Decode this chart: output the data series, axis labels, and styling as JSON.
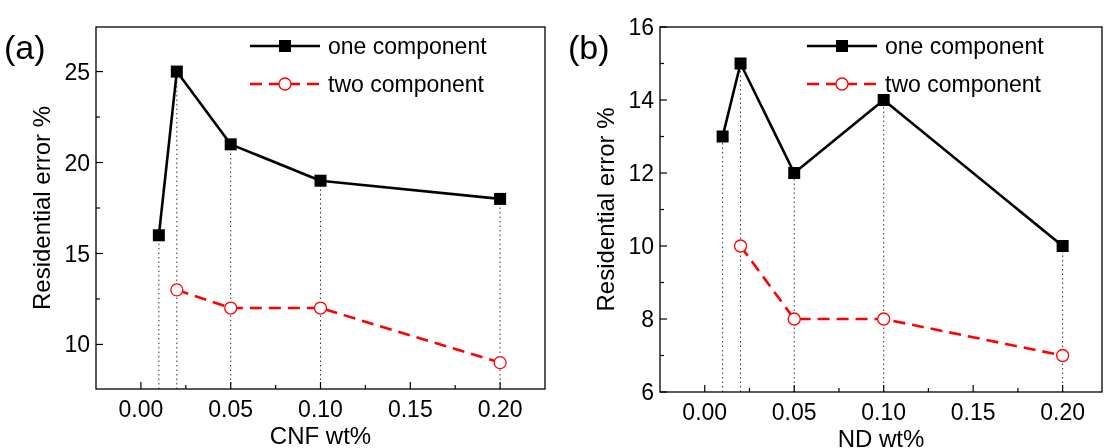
{
  "chart_data": [
    {
      "type": "line",
      "xlabel": "CNF wt%",
      "ylabel": "Residential error %",
      "annotations": [
        "(a)"
      ],
      "xlim": [
        -0.025,
        0.225
      ],
      "ylim": [
        7.55,
        27.45
      ],
      "xticks": [
        {
          "value": 0,
          "label": "0.00"
        },
        {
          "value": 0.025,
          "label": null
        },
        {
          "value": 0.05,
          "label": "0.05"
        },
        {
          "value": 0.075,
          "label": null
        },
        {
          "value": 0.1,
          "label": "0.10"
        },
        {
          "value": 0.125,
          "label": null
        },
        {
          "value": 0.15,
          "label": "0.15"
        },
        {
          "value": 0.175,
          "label": null
        },
        {
          "value": 0.2,
          "label": "0.20"
        }
      ],
      "yticks": [
        10,
        {
          "value": 12.5,
          "label": null
        },
        15,
        {
          "value": 17.5,
          "label": null
        },
        20,
        {
          "value": 22.5,
          "label": null
        },
        25
      ],
      "legend": "top right",
      "ref_lines": [
        {
          "axis": "x",
          "value": 0.01,
          "line_style": "dotted"
        },
        {
          "axis": "x",
          "value": 0.02,
          "line_style": "dotted"
        },
        {
          "axis": "x",
          "value": 0.05,
          "line_style": "dotted"
        },
        {
          "axis": "x",
          "value": 0.1,
          "line_style": "dotted"
        },
        {
          "axis": "x",
          "value": 0.2,
          "line_style": "dotted"
        }
      ],
      "series": [
        {
          "name": "one component",
          "color": "#000000",
          "marker": "square",
          "line_style": "solid",
          "x": [
            0.01,
            0.02,
            0.05,
            0.1,
            0.2
          ],
          "values": [
            16,
            25,
            21,
            19,
            18
          ]
        },
        {
          "name": "two component",
          "color": "#ff0000",
          "marker": "circle",
          "line_style": "dashed",
          "x": [
            0.02,
            0.05,
            0.1,
            0.2
          ],
          "values": [
            13,
            12,
            12,
            9
          ]
        }
      ]
    },
    {
      "type": "line",
      "xlabel": "ND wt%",
      "ylabel": "Residential error %",
      "annotations": [
        "(b)"
      ],
      "xlim": [
        -0.025,
        0.222
      ],
      "ylim": [
        6,
        16
      ],
      "xticks": [
        {
          "value": 0,
          "label": "0.00"
        },
        {
          "value": 0.025,
          "label": null
        },
        {
          "value": 0.05,
          "label": "0.05"
        },
        {
          "value": 0.075,
          "label": null
        },
        {
          "value": 0.1,
          "label": "0.10"
        },
        {
          "value": 0.125,
          "label": null
        },
        {
          "value": 0.15,
          "label": "0.15"
        },
        {
          "value": 0.175,
          "label": null
        },
        {
          "value": 0.2,
          "label": "0.20"
        }
      ],
      "yticks": [
        6,
        {
          "value": 7,
          "label": null
        },
        8,
        {
          "value": 9,
          "label": null
        },
        10,
        {
          "value": 11,
          "label": null
        },
        12,
        {
          "value": 13,
          "label": null
        },
        14,
        {
          "value": 15,
          "label": null
        },
        16
      ],
      "legend": "top right",
      "ref_lines": [
        {
          "axis": "x",
          "value": 0.01,
          "line_style": "dotted"
        },
        {
          "axis": "x",
          "value": 0.02,
          "line_style": "dotted"
        },
        {
          "axis": "x",
          "value": 0.05,
          "line_style": "dotted"
        },
        {
          "axis": "x",
          "value": 0.1,
          "line_style": "dotted"
        },
        {
          "axis": "x",
          "value": 0.2,
          "line_style": "dotted"
        }
      ],
      "series": [
        {
          "name": "one component",
          "color": "#000000",
          "marker": "square",
          "line_style": "solid",
          "x": [
            0.01,
            0.02,
            0.05,
            0.1,
            0.2
          ],
          "values": [
            13,
            15,
            12,
            14,
            10
          ]
        },
        {
          "name": "two component",
          "color": "#ff0000",
          "marker": "circle",
          "line_style": "dashed",
          "x": [
            0.02,
            0.05,
            0.1,
            0.2
          ],
          "values": [
            10,
            8,
            8,
            7
          ]
        }
      ]
    }
  ]
}
